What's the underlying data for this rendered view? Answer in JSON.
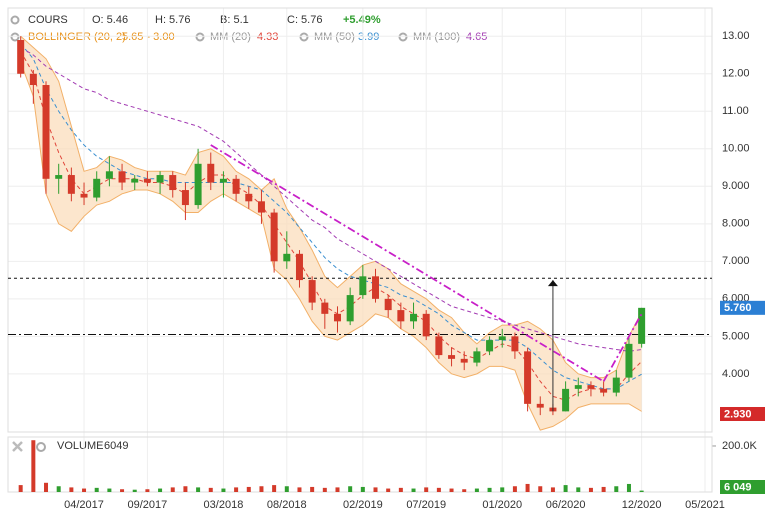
{
  "chart_data": {
    "type": "candlestick",
    "header": {
      "cours": "COURS",
      "items": [
        "O: 5.46",
        "H: 5.76",
        "B: 5.1",
        "C: 5.76"
      ],
      "change": "+5.49%"
    },
    "indicators": [
      {
        "name": "BOLLINGER (20, 2)",
        "value": "5.65 - 3.00",
        "color": "#e8931c"
      },
      {
        "name": "MM (20)",
        "value": 4.33,
        "color": "#e0453a"
      },
      {
        "name": "MM (50)",
        "value": 3.99,
        "color": "#3a8fd0"
      },
      {
        "name": "MM (100)",
        "value": 4.65,
        "color": "#a33cb3"
      }
    ],
    "x": [
      "11/2016",
      "12/2016",
      "01/2017",
      "02/2017",
      "03/2017",
      "04/2017",
      "05/2017",
      "06/2017",
      "07/2017",
      "08/2017",
      "09/2017",
      "10/2017",
      "11/2017",
      "12/2017",
      "01/2018",
      "02/2018",
      "03/2018",
      "04/2018",
      "05/2018",
      "06/2018",
      "07/2018",
      "08/2018",
      "09/2018",
      "10/2018",
      "11/2018",
      "12/2018",
      "01/2019",
      "02/2019",
      "03/2019",
      "04/2019",
      "05/2019",
      "06/2019",
      "07/2019",
      "08/2019",
      "09/2019",
      "10/2019",
      "11/2019",
      "12/2019",
      "01/2020",
      "02/2020",
      "03/2020",
      "04/2020",
      "05/2020",
      "06/2020",
      "07/2020",
      "08/2020",
      "09/2020",
      "10/2020",
      "11/2020",
      "12/2020"
    ],
    "open": [
      12.9,
      12.0,
      11.7,
      9.2,
      9.3,
      8.8,
      8.7,
      9.2,
      9.4,
      9.1,
      9.2,
      9.1,
      9.3,
      8.9,
      8.5,
      9.6,
      9.1,
      9.2,
      8.8,
      8.6,
      8.3,
      7.0,
      7.2,
      6.5,
      5.9,
      5.6,
      5.4,
      6.1,
      6.6,
      6.0,
      5.7,
      5.4,
      5.6,
      5.0,
      4.5,
      4.4,
      4.3,
      4.6,
      4.9,
      5.0,
      4.6,
      3.2,
      3.1,
      3.0,
      3.6,
      3.7,
      3.6,
      3.5,
      3.9,
      4.8
    ],
    "high": [
      13.0,
      12.1,
      11.8,
      9.6,
      9.5,
      9.1,
      9.4,
      9.8,
      9.6,
      9.3,
      9.4,
      9.4,
      9.4,
      9.1,
      10.0,
      9.9,
      9.4,
      9.3,
      9.0,
      8.9,
      8.4,
      7.8,
      7.3,
      6.6,
      6.0,
      5.8,
      6.3,
      6.9,
      6.8,
      6.1,
      5.9,
      5.9,
      5.7,
      5.1,
      4.7,
      4.6,
      4.7,
      5.0,
      5.2,
      5.1,
      4.7,
      3.4,
      3.2,
      3.8,
      3.9,
      3.8,
      3.8,
      4.1,
      5.0,
      5.76
    ],
    "low": [
      11.9,
      11.2,
      8.8,
      8.8,
      8.6,
      8.5,
      8.6,
      9.0,
      8.9,
      8.9,
      9.0,
      8.8,
      8.7,
      8.1,
      8.4,
      8.9,
      8.7,
      8.6,
      8.4,
      8.0,
      6.7,
      6.8,
      6.3,
      5.7,
      5.2,
      5.1,
      5.3,
      6.0,
      5.9,
      5.5,
      5.2,
      5.2,
      4.9,
      4.4,
      4.2,
      4.1,
      4.2,
      4.5,
      4.7,
      4.4,
      3.0,
      2.9,
      2.9,
      3.0,
      3.4,
      3.4,
      3.4,
      3.4,
      3.8,
      4.7
    ],
    "close": [
      12.0,
      11.7,
      9.2,
      9.3,
      8.8,
      8.7,
      9.2,
      9.4,
      9.1,
      9.2,
      9.1,
      9.3,
      8.9,
      8.5,
      9.6,
      9.1,
      9.2,
      8.8,
      8.6,
      8.3,
      7.0,
      7.2,
      6.5,
      5.9,
      5.6,
      5.4,
      6.1,
      6.6,
      6.0,
      5.7,
      5.4,
      5.6,
      5.0,
      4.5,
      4.4,
      4.3,
      4.6,
      4.9,
      5.0,
      4.6,
      3.2,
      3.1,
      3.0,
      3.6,
      3.7,
      3.6,
      3.5,
      3.9,
      4.8,
      5.76
    ],
    "up_color": "#2f9e2f",
    "down_color": "#d43a2a",
    "bollinger": {
      "upper": [
        13.0,
        12.7,
        12.4,
        11.8,
        10.6,
        9.4,
        9.5,
        9.8,
        9.7,
        9.5,
        9.4,
        9.4,
        9.4,
        9.3,
        9.9,
        10.0,
        9.8,
        9.4,
        9.2,
        8.9,
        9.2,
        8.4,
        7.9,
        7.3,
        6.6,
        6.3,
        6.6,
        6.9,
        7.0,
        6.8,
        6.4,
        6.2,
        6.0,
        5.7,
        5.5,
        5.1,
        4.8,
        5.1,
        5.3,
        5.3,
        5.4,
        5.2,
        4.9,
        4.3,
        4.0,
        3.9,
        3.9,
        4.1,
        5.0,
        5.65
      ],
      "lower": [
        12.3,
        11.4,
        8.8,
        8.0,
        7.8,
        8.2,
        8.5,
        8.6,
        8.8,
        8.9,
        8.9,
        8.8,
        8.6,
        8.3,
        8.3,
        8.6,
        8.8,
        8.6,
        8.4,
        8.2,
        6.8,
        6.5,
        6.0,
        5.4,
        5.0,
        4.9,
        5.1,
        5.3,
        5.6,
        5.5,
        5.2,
        5.0,
        4.7,
        4.3,
        4.0,
        3.9,
        4.0,
        4.2,
        4.2,
        4.1,
        3.2,
        2.5,
        2.6,
        2.8,
        3.1,
        3.2,
        3.2,
        3.2,
        3.2,
        3.0
      ],
      "fill": "#fbdcb8",
      "stroke": "#f2b068"
    },
    "series": [
      {
        "name": "MM (20)",
        "color": "#e0453a",
        "values": [
          12.6,
          12.0,
          10.8,
          9.9,
          9.2,
          8.8,
          9.0,
          9.2,
          9.2,
          9.2,
          9.1,
          9.1,
          9.0,
          8.8,
          9.1,
          9.3,
          9.3,
          9.0,
          8.8,
          8.5,
          8.0,
          7.5,
          7.0,
          6.4,
          5.8,
          5.6,
          5.8,
          6.1,
          6.3,
          6.1,
          5.8,
          5.6,
          5.4,
          5.0,
          4.7,
          4.5,
          4.4,
          4.6,
          4.8,
          4.7,
          4.3,
          3.8,
          3.4,
          3.3,
          3.5,
          3.6,
          3.6,
          3.6,
          4.0,
          4.33
        ]
      },
      {
        "name": "MM (50)",
        "color": "#3a8fd0",
        "values": [
          12.8,
          12.4,
          11.6,
          11.0,
          10.5,
          10.1,
          9.8,
          9.6,
          9.4,
          9.3,
          9.2,
          9.2,
          9.1,
          9.1,
          9.1,
          9.1,
          9.1,
          9.1,
          9.0,
          8.9,
          8.6,
          8.3,
          7.9,
          7.5,
          7.1,
          6.8,
          6.6,
          6.5,
          6.4,
          6.3,
          6.1,
          6.0,
          5.8,
          5.6,
          5.3,
          5.1,
          4.9,
          4.9,
          4.9,
          4.9,
          4.7,
          4.4,
          4.1,
          3.9,
          3.8,
          3.7,
          3.6,
          3.6,
          3.8,
          3.99
        ]
      },
      {
        "name": "MM (100)",
        "color": "#a33cb3",
        "values": [
          12.7,
          12.5,
          12.2,
          12.0,
          11.8,
          11.6,
          11.5,
          11.3,
          11.2,
          11.1,
          11.0,
          10.9,
          10.8,
          10.7,
          10.6,
          10.4,
          10.2,
          9.9,
          9.6,
          9.3,
          9.0,
          8.7,
          8.4,
          8.1,
          7.9,
          7.6,
          7.4,
          7.2,
          7.0,
          6.8,
          6.6,
          6.4,
          6.2,
          6.0,
          5.8,
          5.7,
          5.6,
          5.5,
          5.4,
          5.3,
          5.2,
          5.1,
          5.0,
          4.9,
          4.8,
          4.75,
          4.7,
          4.65,
          4.6,
          4.65
        ]
      }
    ],
    "hlines": [
      {
        "value": 6.55,
        "style": "dashed"
      },
      {
        "value": 5.05,
        "style": "dashdot"
      }
    ],
    "trendlines": [
      {
        "x": [
          "02/2018",
          "09/2020"
        ],
        "y": [
          10.1,
          3.8
        ],
        "color": "#c81fc8"
      },
      {
        "x": [
          "09/2020",
          "12/2020"
        ],
        "y": [
          3.8,
          5.6
        ],
        "color": "#c81fc8"
      }
    ],
    "arrow": {
      "x": "05/2020",
      "from": 3.0,
      "to": 6.5
    },
    "price_tags": [
      {
        "value": 5.76,
        "label": "5.760",
        "color": "#2b7fd4"
      },
      {
        "value": 2.93,
        "label": "2.930",
        "color": "#d42a2a"
      }
    ],
    "xlim": [
      "10/2016",
      "05/2021"
    ],
    "xticks": [
      "04/2017",
      "09/2017",
      "03/2018",
      "08/2018",
      "02/2019",
      "07/2019",
      "01/2020",
      "06/2020",
      "12/2020",
      "05/2021"
    ],
    "ylim": [
      2.45,
      13.7
    ],
    "yticks": [
      {
        "value": 4,
        "label": "4.000"
      },
      {
        "value": 5,
        "label": "5.000"
      },
      {
        "value": 6,
        "label": "6.000"
      },
      {
        "value": 7,
        "label": "7.000"
      },
      {
        "value": 8,
        "label": "8.000"
      },
      {
        "value": 9,
        "label": "9.000"
      },
      {
        "value": 10,
        "label": "10.00"
      },
      {
        "value": 11,
        "label": "11.00"
      },
      {
        "value": 12,
        "label": "12.00"
      },
      {
        "value": 13,
        "label": "13.00"
      }
    ],
    "grid": true,
    "volume": {
      "title": "VOLUME",
      "values": [
        30000,
        225000,
        40000,
        25000,
        20000,
        15000,
        18000,
        15000,
        12000,
        10000,
        12000,
        15000,
        20000,
        25000,
        20000,
        18000,
        15000,
        20000,
        22000,
        25000,
        30000,
        25000,
        20000,
        22000,
        18000,
        20000,
        25000,
        22000,
        20000,
        15000,
        18000,
        15000,
        20000,
        18000,
        15000,
        12000,
        15000,
        18000,
        20000,
        25000,
        35000,
        25000,
        20000,
        30000,
        20000,
        18000,
        22000,
        25000,
        35000,
        6049
      ],
      "ylim": [
        0,
        239000
      ],
      "yticks": [
        {
          "value": 200000,
          "label": "200.0K"
        }
      ],
      "tag": {
        "value": 6049,
        "label": "6 049",
        "color": "#2f9e2f"
      }
    }
  }
}
